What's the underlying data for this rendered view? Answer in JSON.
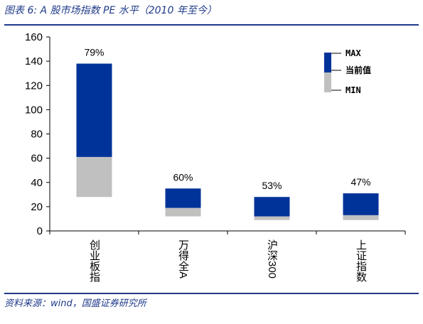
{
  "figure": {
    "title": "图表 6:  A 股市场指数 PE 水平（2010 年至今）",
    "source": "资料来源：wind，国盛证券研究所"
  },
  "chart_data": {
    "type": "bar",
    "categories": [
      "创业板指",
      "万得全A",
      "沪深300",
      "上证指数"
    ],
    "series": [
      {
        "name": "MAX",
        "values": [
          138,
          35,
          28,
          31
        ]
      },
      {
        "name": "当前值",
        "values": [
          61,
          19,
          12,
          13
        ]
      },
      {
        "name": "MIN",
        "values": [
          28,
          12,
          9,
          9
        ]
      }
    ],
    "percentile_labels": [
      "79%",
      "60%",
      "53%",
      "47%"
    ],
    "ylim": [
      0,
      160
    ],
    "yticks": [
      0,
      20,
      40,
      60,
      80,
      100,
      120,
      140,
      160
    ],
    "legend": [
      "MAX",
      "当前值",
      "MIN"
    ],
    "legend_position": "top-right",
    "grid": false,
    "colors": {
      "upper": "#003399",
      "lower": "#c0c0c0"
    }
  }
}
